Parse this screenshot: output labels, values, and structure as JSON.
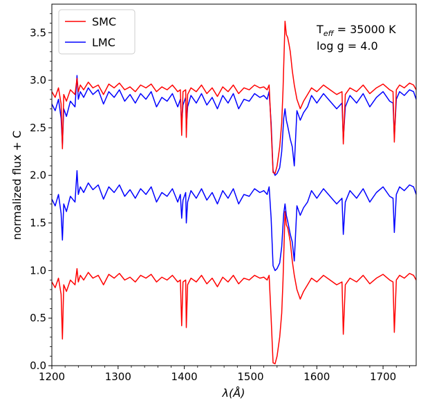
{
  "chart_data": {
    "type": "line",
    "title": "",
    "xlabel": "λ(Å)",
    "ylabel": "normalized flux + C",
    "xlim": [
      1200,
      1750
    ],
    "ylim": [
      0.0,
      3.8
    ],
    "xticks": [
      1200,
      1300,
      1400,
      1500,
      1600,
      1700
    ],
    "yticks": [
      0.0,
      0.5,
      1.0,
      1.5,
      2.0,
      2.5,
      3.0,
      3.5
    ],
    "ytick_labels": [
      "0.0",
      "0.5",
      "1.0",
      "1.5",
      "2.0",
      "2.5",
      "3.0",
      "3.5"
    ],
    "grid": false,
    "legend_position": "top-left",
    "annotations": [
      {
        "base": "T",
        "sub": "eff",
        "rest": " = 35000 K"
      },
      {
        "text": "log g = 4.0"
      }
    ],
    "series": [
      {
        "name": "SMC",
        "color": "#ff0000",
        "offsets": [
          0.0,
          2.0
        ],
        "x": [
          1200,
          1205,
          1210,
          1214,
          1216,
          1218,
          1222,
          1228,
          1235,
          1238,
          1240,
          1243,
          1248,
          1255,
          1262,
          1270,
          1278,
          1286,
          1294,
          1302,
          1310,
          1318,
          1326,
          1334,
          1342,
          1350,
          1358,
          1366,
          1374,
          1382,
          1390,
          1394,
          1396,
          1398,
          1402,
          1403,
          1405,
          1410,
          1418,
          1426,
          1434,
          1442,
          1450,
          1458,
          1466,
          1474,
          1482,
          1490,
          1498,
          1506,
          1514,
          1520,
          1525,
          1528,
          1531,
          1534,
          1537,
          1540,
          1544,
          1547,
          1549,
          1550,
          1552,
          1554,
          1556,
          1558,
          1560,
          1563,
          1566,
          1570,
          1575,
          1580,
          1586,
          1592,
          1600,
          1610,
          1620,
          1630,
          1638,
          1640,
          1643,
          1650,
          1660,
          1670,
          1680,
          1690,
          1700,
          1710,
          1715,
          1717,
          1720,
          1725,
          1732,
          1740,
          1746,
          1750
        ],
        "y": [
          0.88,
          0.82,
          0.92,
          0.75,
          0.28,
          0.85,
          0.78,
          0.9,
          0.85,
          1.02,
          0.88,
          0.95,
          0.9,
          0.98,
          0.92,
          0.95,
          0.85,
          0.96,
          0.92,
          0.97,
          0.9,
          0.93,
          0.88,
          0.95,
          0.92,
          0.96,
          0.88,
          0.93,
          0.9,
          0.95,
          0.88,
          0.9,
          0.42,
          0.88,
          0.9,
          0.4,
          0.85,
          0.92,
          0.88,
          0.95,
          0.86,
          0.92,
          0.83,
          0.93,
          0.88,
          0.95,
          0.86,
          0.92,
          0.9,
          0.95,
          0.92,
          0.93,
          0.9,
          0.95,
          0.5,
          0.03,
          0.02,
          0.1,
          0.3,
          0.55,
          0.9,
          1.15,
          1.62,
          1.48,
          1.45,
          1.38,
          1.3,
          1.1,
          0.95,
          0.8,
          0.7,
          0.78,
          0.85,
          0.92,
          0.88,
          0.95,
          0.9,
          0.85,
          0.88,
          0.33,
          0.85,
          0.92,
          0.88,
          0.95,
          0.86,
          0.92,
          0.96,
          0.9,
          0.88,
          0.35,
          0.9,
          0.95,
          0.92,
          0.97,
          0.95,
          0.9
        ]
      },
      {
        "name": "LMC",
        "color": "#0000ff",
        "offsets": [
          1.0,
          2.0
        ],
        "x": [
          1200,
          1205,
          1210,
          1214,
          1216,
          1218,
          1222,
          1228,
          1235,
          1238,
          1240,
          1243,
          1248,
          1255,
          1262,
          1270,
          1278,
          1286,
          1294,
          1302,
          1310,
          1318,
          1326,
          1334,
          1342,
          1350,
          1358,
          1366,
          1374,
          1382,
          1390,
          1394,
          1396,
          1398,
          1402,
          1403,
          1405,
          1410,
          1418,
          1426,
          1434,
          1442,
          1450,
          1458,
          1466,
          1474,
          1482,
          1490,
          1498,
          1506,
          1514,
          1520,
          1525,
          1528,
          1531,
          1534,
          1537,
          1540,
          1544,
          1547,
          1549,
          1550,
          1552,
          1554,
          1556,
          1558,
          1560,
          1563,
          1566,
          1570,
          1575,
          1580,
          1586,
          1592,
          1600,
          1610,
          1620,
          1630,
          1638,
          1640,
          1643,
          1650,
          1660,
          1670,
          1680,
          1690,
          1700,
          1710,
          1715,
          1717,
          1720,
          1725,
          1732,
          1740,
          1746,
          1750
        ],
        "y": [
          0.75,
          0.68,
          0.8,
          0.6,
          0.32,
          0.7,
          0.62,
          0.78,
          0.72,
          1.05,
          0.8,
          0.88,
          0.82,
          0.92,
          0.85,
          0.9,
          0.75,
          0.88,
          0.82,
          0.9,
          0.78,
          0.85,
          0.76,
          0.86,
          0.8,
          0.88,
          0.72,
          0.82,
          0.78,
          0.86,
          0.72,
          0.8,
          0.55,
          0.74,
          0.82,
          0.5,
          0.72,
          0.84,
          0.76,
          0.86,
          0.74,
          0.82,
          0.7,
          0.84,
          0.76,
          0.86,
          0.7,
          0.8,
          0.78,
          0.86,
          0.82,
          0.84,
          0.8,
          0.88,
          0.55,
          0.05,
          0.0,
          0.02,
          0.08,
          0.25,
          0.48,
          0.6,
          0.7,
          0.58,
          0.52,
          0.45,
          0.38,
          0.3,
          0.1,
          0.68,
          0.58,
          0.66,
          0.72,
          0.84,
          0.76,
          0.86,
          0.78,
          0.7,
          0.76,
          0.38,
          0.72,
          0.84,
          0.76,
          0.86,
          0.72,
          0.82,
          0.88,
          0.78,
          0.76,
          0.4,
          0.8,
          0.88,
          0.84,
          0.9,
          0.88,
          0.8
        ]
      }
    ]
  }
}
